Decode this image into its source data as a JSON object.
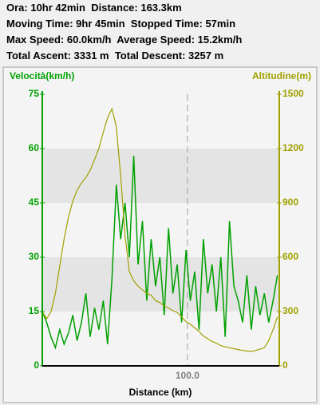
{
  "header": {
    "lines": [
      "Ora: 10hr 42min  Distance: 163.3km",
      "Moving Time: 9hr 45min  Stopped Time: 57min",
      "Max Speed: 60.0km/h  Average Speed: 15.2km/h",
      "Total Ascent: 3331 m  Total Descent: 3257 m"
    ]
  },
  "chart_data": {
    "type": "line",
    "xlabel": "Distance (km)",
    "ylabel": "Velocità(km/h)",
    "y2label": "Altitudine(m)",
    "x": [
      0,
      3,
      6,
      9,
      12,
      15,
      18,
      21,
      24,
      27,
      30,
      33,
      36,
      39,
      42,
      45,
      48,
      51,
      54,
      57,
      60,
      63,
      66,
      69,
      72,
      75,
      78,
      81,
      84,
      87,
      90,
      93,
      96,
      99,
      102,
      105,
      108,
      111,
      114,
      117,
      120,
      123,
      126,
      129,
      132,
      135,
      138,
      141,
      144,
      147,
      150,
      153,
      156,
      159,
      162
    ],
    "series": [
      {
        "color": "#00a000",
        "values": [
          15,
          12,
          8,
          5,
          10,
          6,
          9,
          14,
          7,
          12,
          20,
          8,
          16,
          10,
          18,
          6,
          24,
          50,
          35,
          45,
          30,
          58,
          28,
          40,
          18,
          35,
          22,
          30,
          14,
          38,
          20,
          28,
          12,
          32,
          18,
          26,
          10,
          35,
          20,
          28,
          15,
          30,
          8,
          40,
          22,
          18,
          12,
          25,
          10,
          22,
          14,
          20,
          12,
          18,
          25
        ]
      },
      {
        "color": "#a0a000",
        "axis": "y2",
        "values": [
          300,
          260,
          300,
          400,
          550,
          700,
          820,
          910,
          970,
          1010,
          1040,
          1080,
          1140,
          1200,
          1290,
          1370,
          1420,
          1320,
          1050,
          720,
          520,
          470,
          440,
          420,
          400,
          390,
          360,
          350,
          330,
          320,
          305,
          295,
          270,
          245,
          230,
          210,
          190,
          165,
          150,
          135,
          125,
          112,
          105,
          100,
          95,
          90,
          85,
          82,
          80,
          85,
          92,
          100,
          140,
          200,
          270
        ]
      }
    ],
    "xlim": [
      0,
      163.3
    ],
    "xticks": [
      {
        "value": 100,
        "label": "100.0"
      }
    ],
    "ylim": [
      0,
      75
    ],
    "yticks": [
      0,
      15,
      30,
      45,
      60,
      75
    ],
    "y2lim": [
      0,
      1500
    ],
    "y2ticks": [
      0,
      300,
      600,
      900,
      1200,
      1500
    ],
    "grid": true
  }
}
